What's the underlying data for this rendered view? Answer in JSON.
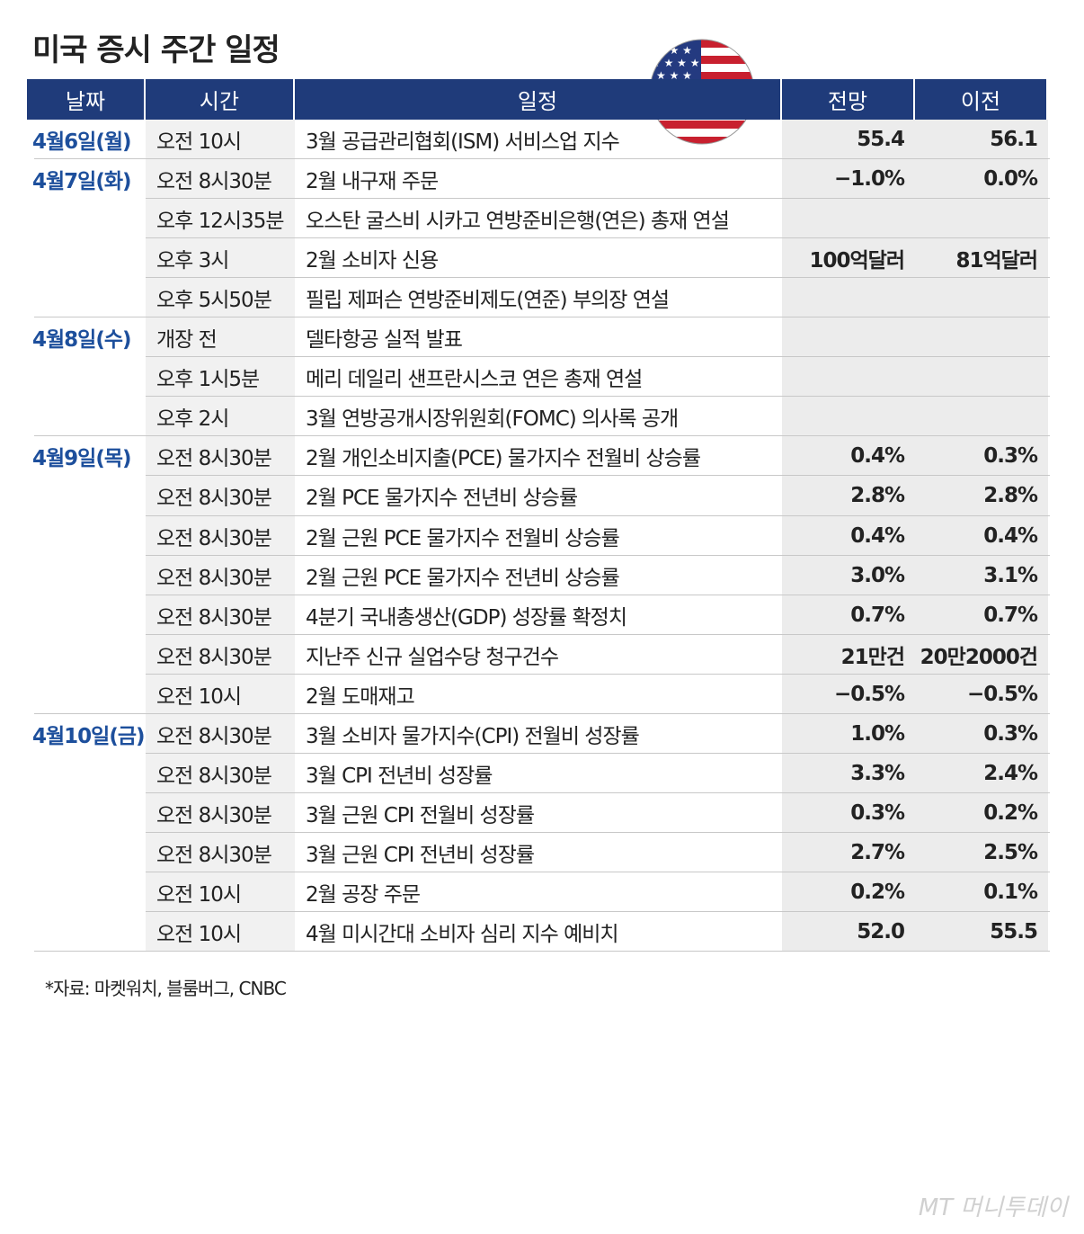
{
  "header": {
    "title": "미국 증시 주간 일정"
  },
  "table": {
    "columns": [
      "날짜",
      "시간",
      "일정",
      "전망",
      "이전"
    ],
    "groups": [
      {
        "date": "4월6일(월)",
        "rows": [
          {
            "time": "오전 10시",
            "event": "3월 공급관리협회(ISM) 서비스업 지수",
            "forecast": "55.4",
            "previous": "56.1"
          }
        ]
      },
      {
        "date": "4월7일(화)",
        "rows": [
          {
            "time": "오전 8시30분",
            "event": "2월 내구재 주문",
            "forecast": "−1.0%",
            "previous": "0.0%"
          },
          {
            "time": "오후 12시35분",
            "event": "오스탄 굴스비 시카고 연방준비은행(연은) 총재 연설"
          },
          {
            "time": "오후 3시",
            "event": "2월 소비자 신용",
            "forecast": "100억달러",
            "previous": "81억달러"
          },
          {
            "time": "오후 5시50분",
            "event": "필립 제퍼슨 연방준비제도(연준) 부의장 연설"
          }
        ]
      },
      {
        "date": "4월8일(수)",
        "rows": [
          {
            "time": "개장 전",
            "event": "델타항공 실적 발표"
          },
          {
            "time": "오후 1시5분",
            "event": "메리 데일리 샌프란시스코 연은 총재 연설"
          },
          {
            "time": "오후 2시",
            "event": "3월 연방공개시장위원회(FOMC) 의사록 공개"
          }
        ]
      },
      {
        "date": "4월9일(목)",
        "rows": [
          {
            "time": "오전 8시30분",
            "event": "2월 개인소비지출(PCE) 물가지수 전월비 상승률",
            "forecast": "0.4%",
            "previous": "0.3%"
          },
          {
            "time": "오전 8시30분",
            "event": "2월 PCE 물가지수 전년비 상승률",
            "forecast": "2.8%",
            "previous": "2.8%"
          },
          {
            "time": "오전 8시30분",
            "event": "2월 근원 PCE 물가지수 전월비 상승률",
            "forecast": "0.4%",
            "previous": "0.4%"
          },
          {
            "time": "오전 8시30분",
            "event": "2월 근원 PCE 물가지수 전년비 상승률",
            "forecast": "3.0%",
            "previous": "3.1%"
          },
          {
            "time": "오전 8시30분",
            "event": "4분기 국내총생산(GDP) 성장률 확정치",
            "forecast": "0.7%",
            "previous": "0.7%"
          },
          {
            "time": "오전 8시30분",
            "event": "지난주 신규 실업수당 청구건수",
            "forecast": "21만건",
            "previous": "20만2000건"
          },
          {
            "time": "오전 10시",
            "event": "2월 도매재고",
            "forecast": "−0.5%",
            "previous": "−0.5%"
          }
        ]
      },
      {
        "date": "4월10일(금)",
        "rows": [
          {
            "time": "오전 8시30분",
            "event": "3월 소비자 물가지수(CPI) 전월비 성장률",
            "forecast": "1.0%",
            "previous": "0.3%"
          },
          {
            "time": "오전 8시30분",
            "event": "3월 CPI 전년비 성장률",
            "forecast": "3.3%",
            "previous": "2.4%"
          },
          {
            "time": "오전 8시30분",
            "event": "3월 근원 CPI 전월비 성장률",
            "forecast": "0.3%",
            "previous": "0.2%"
          },
          {
            "time": "오전 8시30분",
            "event": "3월 근원 CPI 전년비 성장률",
            "forecast": "2.7%",
            "previous": "2.5%"
          },
          {
            "time": "오전 10시",
            "event": "2월 공장 주문",
            "forecast": "0.2%",
            "previous": "0.1%"
          },
          {
            "time": "오전 10시",
            "event": "4월 미시간대 소비자 심리 지수 예비치",
            "forecast": "52.0",
            "previous": "55.5"
          }
        ]
      }
    ]
  },
  "footer": {
    "source": "*자료: 마켓워치, 블룸버그, CNBC",
    "watermark": "MT 머니투데이"
  }
}
